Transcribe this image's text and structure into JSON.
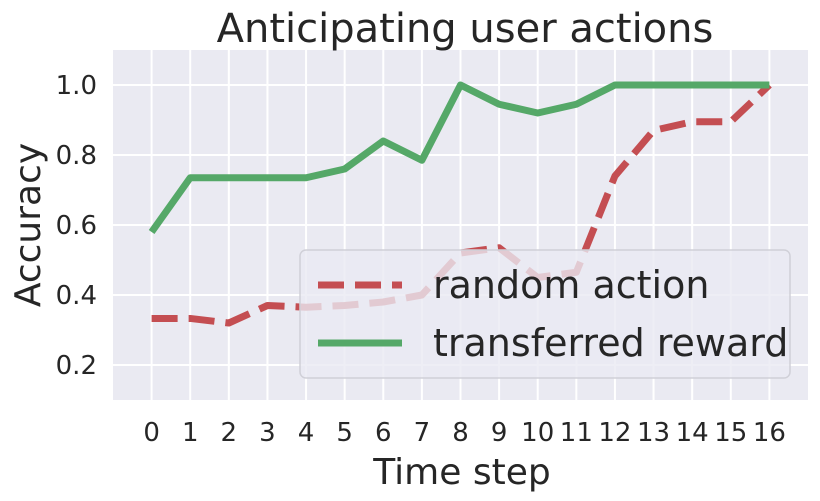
{
  "chart_data": {
    "type": "line",
    "title": "Anticipating user actions",
    "xlabel": "Time step",
    "ylabel": "Accuracy",
    "x": [
      0,
      1,
      2,
      3,
      4,
      5,
      6,
      7,
      8,
      9,
      10,
      11,
      12,
      13,
      14,
      15,
      16
    ],
    "xticks": [
      "0",
      "1",
      "2",
      "3",
      "4",
      "5",
      "6",
      "7",
      "8",
      "9",
      "10",
      "11",
      "12",
      "13",
      "14",
      "15",
      "16"
    ],
    "yticks": [
      "0.2",
      "0.4",
      "0.6",
      "0.8",
      "1.0"
    ],
    "yticks_values": [
      0.2,
      0.4,
      0.6,
      0.8,
      1.0
    ],
    "xlim": [
      -1,
      17
    ],
    "ylim": [
      0.1,
      1.1
    ],
    "grid": true,
    "legend_position": "lower-right",
    "series": [
      {
        "name": "random action",
        "color": "#c44e52",
        "style": "dashed",
        "values": [
          0.333,
          0.333,
          0.32,
          0.37,
          0.365,
          0.37,
          0.38,
          0.4,
          0.52,
          0.535,
          0.45,
          0.465,
          0.74,
          0.87,
          0.895,
          0.895,
          1.0
        ]
      },
      {
        "name": "transferred reward",
        "color": "#55a868",
        "style": "solid",
        "values": [
          0.58,
          0.735,
          0.735,
          0.735,
          0.735,
          0.76,
          0.84,
          0.785,
          1.0,
          0.945,
          0.92,
          0.945,
          1.0,
          1.0,
          1.0,
          1.0,
          1.0
        ]
      }
    ],
    "background_color": "#eaeaf2",
    "grid_color": "#ffffff"
  }
}
